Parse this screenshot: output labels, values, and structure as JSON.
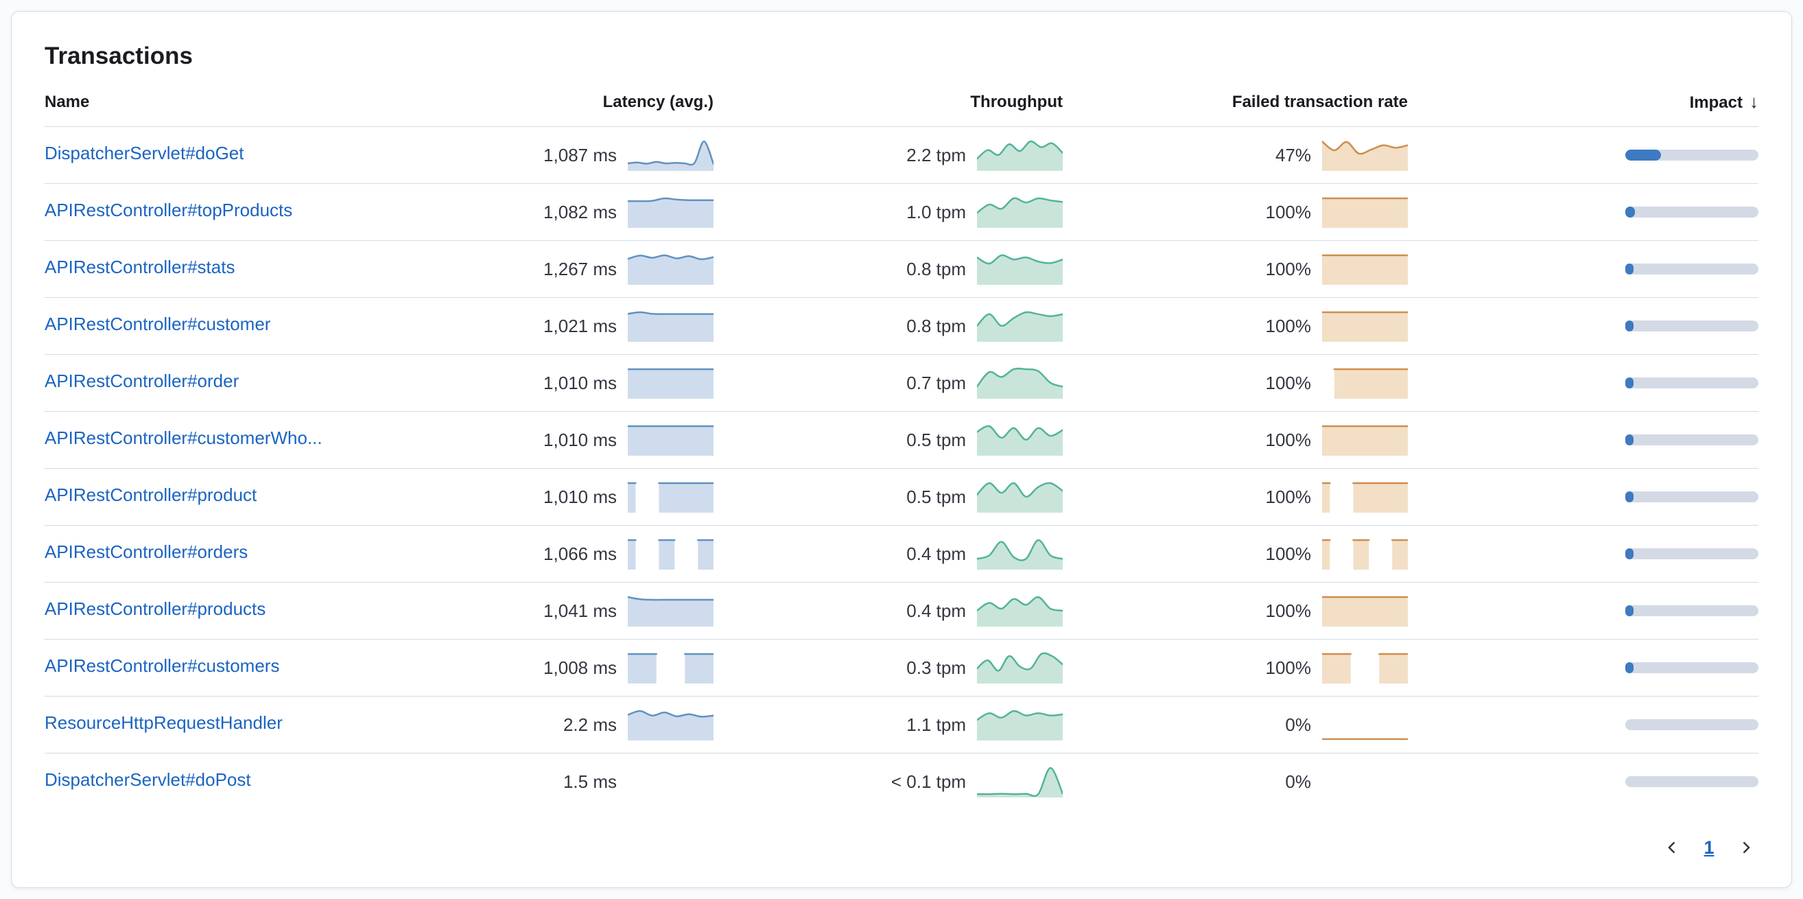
{
  "panel": {
    "title": "Transactions"
  },
  "table": {
    "columns": [
      {
        "key": "name",
        "label": "Name"
      },
      {
        "key": "latency",
        "label": "Latency (avg.)"
      },
      {
        "key": "throughput",
        "label": "Throughput"
      },
      {
        "key": "failed",
        "label": "Failed transaction rate"
      },
      {
        "key": "impact",
        "label": "Impact",
        "sort": "desc"
      }
    ],
    "rows": [
      {
        "name": "DispatcherServlet#doGet",
        "latency": "1,087 ms",
        "throughput": "2.2 tpm",
        "failed": "47%",
        "impact_pct": 27,
        "latency_spark": [
          1,
          1.15,
          0.95,
          1.25,
          1,
          1.1,
          1,
          1.05,
          4.6,
          0.9
        ],
        "throughput_spark": [
          1.1,
          2.0,
          1.5,
          2.6,
          1.9,
          2.9,
          2.3,
          2.7,
          1.7
        ],
        "failed_spark": [
          4.4,
          3.0,
          4.3,
          2.5,
          3.1,
          3.8,
          3.4,
          3.8
        ]
      },
      {
        "name": "APIRestController#topProducts",
        "latency": "1,082 ms",
        "throughput": "1.0 tpm",
        "failed": "100%",
        "impact_pct": 7,
        "latency_spark": [
          4.1,
          4.1,
          4.15,
          4.55,
          4.35,
          4.25,
          4.25,
          4.25
        ],
        "throughput_spark": [
          1.3,
          2.1,
          1.7,
          2.7,
          2.3,
          2.7,
          2.5,
          2.35
        ],
        "failed_spark": [
          1,
          1,
          1,
          1,
          1,
          1,
          1,
          1
        ]
      },
      {
        "name": "APIRestController#stats",
        "latency": "1,267 ms",
        "throughput": "0.8 tpm",
        "failed": "100%",
        "impact_pct": 6,
        "latency_spark": [
          4.0,
          4.55,
          4.2,
          4.6,
          4.1,
          4.45,
          3.95,
          4.3
        ],
        "throughput_spark": [
          2.5,
          1.9,
          2.7,
          2.3,
          2.5,
          2.1,
          1.95,
          2.3
        ],
        "failed_spark": [
          1,
          1,
          1,
          1,
          1,
          1,
          1,
          1
        ]
      },
      {
        "name": "APIRestController#customer",
        "latency": "1,021 ms",
        "throughput": "0.8 tpm",
        "failed": "100%",
        "impact_pct": 5,
        "latency_spark": [
          4.25,
          4.5,
          4.25,
          4.22,
          4.22,
          4.22,
          4.22,
          4.22
        ],
        "throughput_spark": [
          1.5,
          2.7,
          1.5,
          2.3,
          2.9,
          2.7,
          2.5,
          2.7
        ],
        "failed_spark": [
          1,
          1,
          1,
          1,
          1,
          1,
          1,
          1
        ]
      },
      {
        "name": "APIRestController#order",
        "latency": "1,010 ms",
        "throughput": "0.7 tpm",
        "failed": "100%",
        "impact_pct": 4.5,
        "latency_spark": [
          4.2,
          4.2,
          4.2,
          4.2,
          4.2,
          4.2,
          4.2,
          4.2
        ],
        "throughput_spark": [
          1.1,
          2.6,
          2.1,
          2.9,
          2.9,
          2.7,
          1.5,
          1.1
        ],
        "failed_spark": [
          null,
          1,
          1,
          1,
          1,
          1,
          1,
          1
        ]
      },
      {
        "name": "APIRestController#customerWho...",
        "latency": "1,010 ms",
        "throughput": "0.5 tpm",
        "failed": "100%",
        "impact_pct": 3.5,
        "latency_spark": [
          4.2,
          4.2,
          4.2,
          4.2,
          4.2,
          4.2,
          4.2,
          4.2
        ],
        "throughput_spark": [
          2.3,
          2.9,
          1.7,
          2.7,
          1.5,
          2.7,
          1.9,
          2.5
        ],
        "failed_spark": [
          1,
          1,
          1,
          1,
          1,
          1,
          1,
          1
        ]
      },
      {
        "name": "APIRestController#product",
        "latency": "1,010 ms",
        "throughput": "0.5 tpm",
        "failed": "100%",
        "impact_pct": 3.5,
        "latency_spark": [
          4.2,
          4.2,
          null,
          null,
          4.2,
          4.2,
          4.2,
          4.2,
          4.2,
          4.2,
          4.2,
          4.2
        ],
        "throughput_spark": [
          1.7,
          2.9,
          1.9,
          2.9,
          1.5,
          2.5,
          2.9,
          2.1
        ],
        "failed_spark": [
          1,
          1,
          null,
          null,
          1,
          1,
          1,
          1,
          1,
          1,
          1,
          1
        ]
      },
      {
        "name": "APIRestController#orders",
        "latency": "1,066 ms",
        "throughput": "0.4 tpm",
        "failed": "100%",
        "impact_pct": 3,
        "latency_spark": [
          4.2,
          4.2,
          null,
          null,
          4.2,
          4.2,
          4.2,
          null,
          null,
          4.2,
          4.2,
          4.2
        ],
        "throughput_spark": [
          1.1,
          1.5,
          3.1,
          1.3,
          1.1,
          3.3,
          1.5,
          1.1
        ],
        "failed_spark": [
          1,
          1,
          null,
          null,
          1,
          1,
          1,
          null,
          null,
          1,
          1,
          1
        ]
      },
      {
        "name": "APIRestController#products",
        "latency": "1,041 ms",
        "throughput": "0.4 tpm",
        "failed": "100%",
        "impact_pct": 4,
        "latency_spark": [
          4.6,
          4.25,
          4.15,
          4.15,
          4.15,
          4.15,
          4.15,
          4.15
        ],
        "throughput_spark": [
          1.5,
          2.3,
          1.7,
          2.7,
          2.1,
          2.9,
          1.7,
          1.5
        ],
        "failed_spark": [
          1,
          1,
          1,
          1,
          1,
          1,
          1,
          1
        ]
      },
      {
        "name": "APIRestController#customers",
        "latency": "1,008 ms",
        "throughput": "0.3 tpm",
        "failed": "100%",
        "impact_pct": 2.5,
        "latency_spark": [
          4.2,
          4.2,
          4.2,
          4.2,
          null,
          null,
          4.2,
          4.2,
          4.2,
          4.2
        ],
        "throughput_spark": [
          1.3,
          2.1,
          1.1,
          2.5,
          1.5,
          1.3,
          2.7,
          2.5,
          1.7
        ],
        "failed_spark": [
          1,
          1,
          1,
          1,
          null,
          null,
          1,
          1,
          1,
          1
        ]
      },
      {
        "name": "ResourceHttpRequestHandler",
        "latency": "2.2 ms",
        "throughput": "1.1 tpm",
        "failed": "0%",
        "impact_pct": 0,
        "latency_spark": [
          3.4,
          3.95,
          3.3,
          3.75,
          3.2,
          3.5,
          3.15,
          3.3
        ],
        "throughput_spark": [
          1.7,
          2.3,
          1.9,
          2.5,
          2.1,
          2.3,
          2.1,
          2.2
        ],
        "failed_spark": [
          0,
          0,
          0,
          0,
          0,
          0,
          0,
          0
        ]
      },
      {
        "name": "DispatcherServlet#doPost",
        "latency": "1.5 ms",
        "throughput": "< 0.1 tpm",
        "failed": "0%",
        "impact_pct": 0,
        "latency_spark": null,
        "throughput_spark": [
          0.25,
          0.25,
          0.3,
          0.25,
          0.28,
          0.25,
          3.6,
          0.3
        ],
        "failed_spark": null
      }
    ]
  },
  "pagination": {
    "current_page": "1",
    "previous_icon": "chevron-left",
    "next_icon": "chevron-right"
  },
  "colors": {
    "page_bg": "#fafbfd",
    "panel_bg": "#ffffff",
    "border": "#d3dae6",
    "heading": "#1a1c21",
    "text": "#343741",
    "link": "#1b64c2",
    "latency_stroke": "#6092c0",
    "latency_fill": "#cfdced",
    "throughput_stroke": "#54b399",
    "throughput_fill": "#c9e5da",
    "failed_stroke": "#cf8d4e",
    "failed_fill": "#f2dfc6",
    "impact_track": "#d3dae6",
    "impact_fill": "#3d7ac0",
    "icon": "#343741"
  }
}
